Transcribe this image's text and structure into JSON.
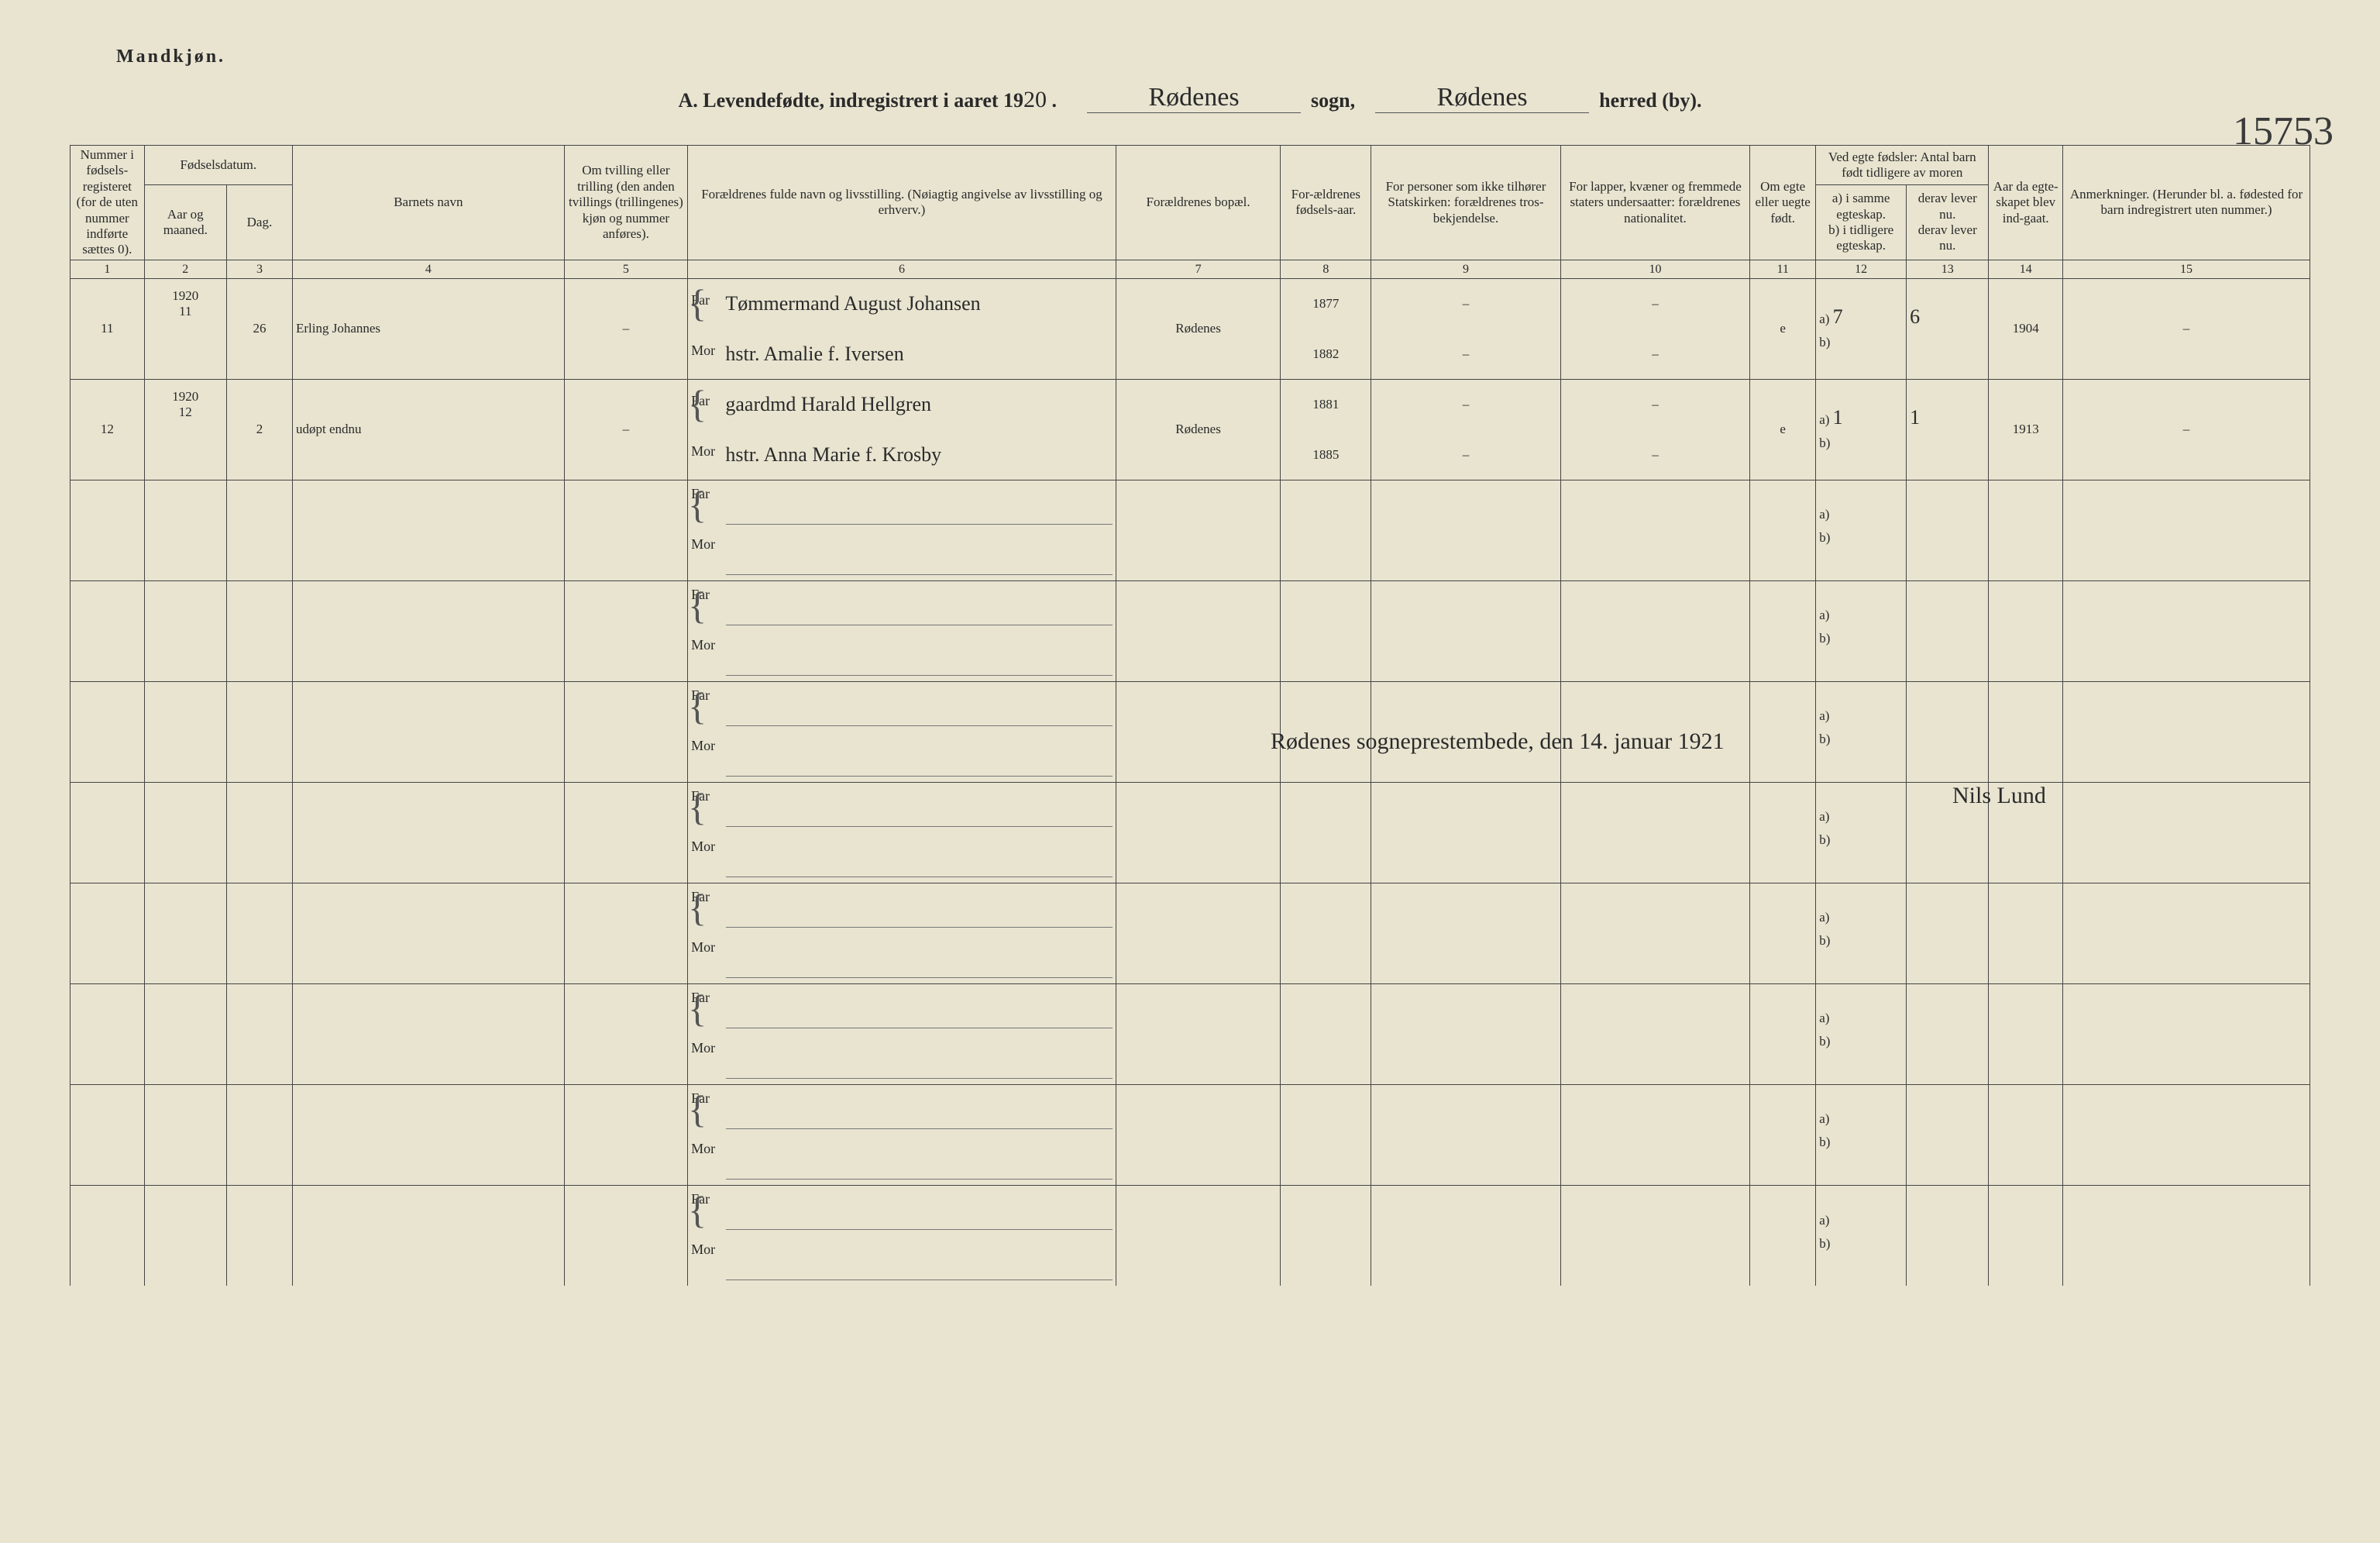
{
  "header": {
    "gender": "Mandkjøn.",
    "title_prefix": "A. Levendefødte, indregistrert i aaret 19",
    "year_suffix": "20",
    "sogn_label": "sogn,",
    "herred_label": "herred (by).",
    "sogn_value": "Rødenes",
    "herred_value": "Rødenes",
    "margin_number": "15753"
  },
  "columns": {
    "c1": "Nummer i fødsels-registeret (for de uten nummer indførte sættes 0).",
    "c2_group": "Fødselsdatum.",
    "c2": "Aar og maaned.",
    "c3": "Dag.",
    "c4": "Barnets navn",
    "c5": "Om tvilling eller trilling (den anden tvillings (trillingenes) kjøn og nummer anføres).",
    "c6": "Forældrenes fulde navn og livsstilling. (Nøiagtig angivelse av livsstilling og erhverv.)",
    "c7": "Forældrenes bopæl.",
    "c8": "For-ældrenes fødsels-aar.",
    "c9": "For personer som ikke tilhører Statskirken: forældrenes tros-bekjendelse.",
    "c10": "For lapper, kvæner og fremmede staters undersaatter: forældrenes nationalitet.",
    "c11": "Om egte eller uegte født.",
    "c12_group": "Ved egte fødsler: Antal barn født tidligere av moren",
    "c12a": "a) i samme egteskap.",
    "c12b": "b) i tidligere egteskap.",
    "c13a": "derav lever nu.",
    "c13b": "derav lever nu.",
    "c14": "Aar da egte-skapet blev ind-gaat.",
    "c15": "Anmerkninger. (Herunder bl. a. fødested for barn indregistrert uten nummer.)",
    "far": "Far",
    "mor": "Mor"
  },
  "col_nums": [
    "1",
    "2",
    "3",
    "4",
    "5",
    "6",
    "7",
    "8",
    "9",
    "10",
    "11",
    "12",
    "13",
    "14",
    "15"
  ],
  "rows": [
    {
      "num": "11",
      "year": "1920",
      "month": "11",
      "day": "26",
      "child": "Erling Johannes",
      "twin": "–",
      "far_title": "Tømmermand",
      "far_name": "August Johansen",
      "mor_title": "hstr.",
      "mor_name": "Amalie f. Iversen",
      "residence": "Rødenes",
      "far_year": "1877",
      "mor_year": "1882",
      "c9f": "–",
      "c9m": "–",
      "c10f": "–",
      "c10m": "–",
      "legit": "e",
      "a12": "7",
      "b12": "",
      "a13": "6",
      "b13": "",
      "marriage": "1904",
      "remarks": "–"
    },
    {
      "num": "12",
      "year": "1920",
      "month": "12",
      "day": "2",
      "child": "udøpt endnu",
      "twin": "–",
      "far_title": "gaardmd",
      "far_name": "Harald Hellgren",
      "mor_title": "hstr.",
      "mor_name": "Anna Marie f. Krosby",
      "residence": "Rødenes",
      "far_year": "1881",
      "mor_year": "1885",
      "c9f": "–",
      "c9m": "–",
      "c10f": "–",
      "c10m": "–",
      "legit": "e",
      "a12": "1",
      "b12": "",
      "a13": "1",
      "b13": "",
      "marriage": "1913",
      "remarks": "–"
    }
  ],
  "signature": {
    "line1": "Rødenes sogneprestembede, den 14. januar 1921",
    "line2": "Nils Lund"
  },
  "colwidths": {
    "c1": 90,
    "c2": 100,
    "c3": 80,
    "c4": 330,
    "c5": 150,
    "c6": 520,
    "c7": 200,
    "c8": 110,
    "c9": 230,
    "c10": 230,
    "c11": 80,
    "c12": 110,
    "c13": 100,
    "c14": 90,
    "c15": 300
  },
  "colors": {
    "paper": "#e8e4d0",
    "rule": "#444444",
    "ink_print": "#2a2a2a",
    "ink_hand": "#2a2a2a"
  },
  "typography": {
    "print_family": "Georgia, Times New Roman, serif",
    "hand_family": "Brush Script MT, cursive",
    "header_size_pt": 17,
    "hand_size_pt": 30
  }
}
